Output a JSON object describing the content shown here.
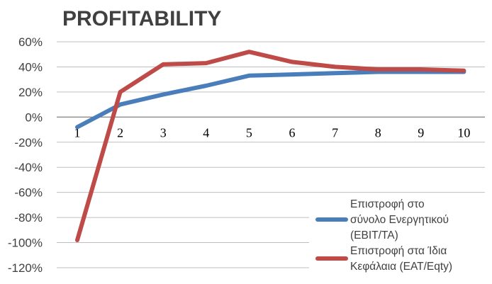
{
  "chart_data": {
    "type": "line",
    "title": "PROFITABILITY",
    "xlabel": "",
    "ylabel": "",
    "categories": [
      "1",
      "2",
      "3",
      "4",
      "5",
      "6",
      "7",
      "8",
      "9",
      "10"
    ],
    "ylim": [
      -1.2,
      0.6
    ],
    "y_ticks": [
      0.6,
      0.4,
      0.2,
      0.0,
      -0.2,
      -0.4,
      -0.6,
      -0.8,
      -1.0,
      -1.2
    ],
    "y_tick_labels": [
      "60%",
      "40%",
      "20%",
      "0%",
      "-20%",
      "-40%",
      "-60%",
      "-80%",
      "-100%",
      "-120%"
    ],
    "grid": true,
    "legend_position": "bottom-right",
    "series": [
      {
        "name": "Επιστροφή στο σύνολο Ενεργητικού (EBIT/TA)",
        "legend_lines": [
          "Επιστροφή στο",
          "σύνολο  Ενεργητικού",
          "(EBIT/TA)"
        ],
        "color": "#4a7ebb",
        "values": [
          -0.08,
          0.1,
          0.18,
          0.25,
          0.33,
          0.34,
          0.35,
          0.36,
          0.36,
          0.36
        ]
      },
      {
        "name": "Επιστροφή στα Ίδια Κεφάλαια (EAT/Eqty)",
        "legend_lines": [
          "Επιστροφή στα Ίδια",
          "Κεφάλαια (EAT/Eqty)"
        ],
        "color": "#be4b48",
        "values": [
          -0.98,
          0.2,
          0.42,
          0.43,
          0.52,
          0.44,
          0.4,
          0.38,
          0.38,
          0.37
        ]
      }
    ]
  }
}
